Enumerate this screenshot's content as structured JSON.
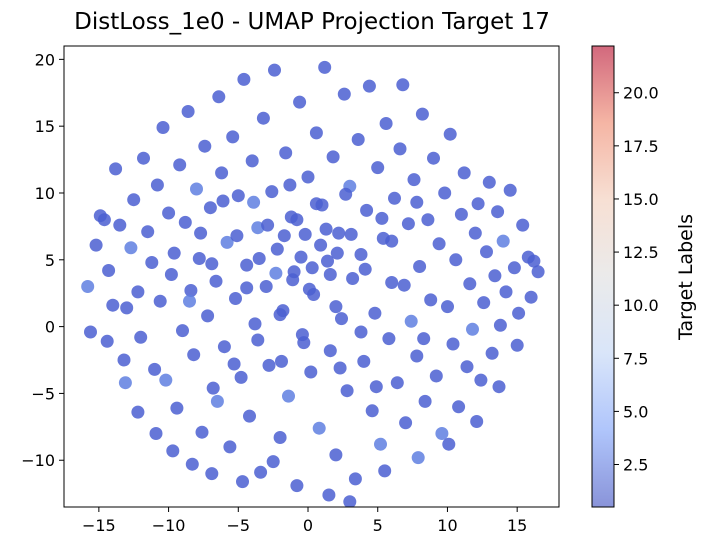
{
  "chart_data": {
    "type": "scatter",
    "title": "DistLoss_1e0 - UMAP Projection Target 17",
    "xlabel": "",
    "ylabel": "",
    "xlim": [
      -17.5,
      18
    ],
    "ylim": [
      -13.5,
      21
    ],
    "x_ticks": [
      -15,
      -10,
      -5,
      0,
      5,
      10,
      15
    ],
    "x_tick_labels": [
      "−15",
      "−10",
      "−5",
      "0",
      "5",
      "10",
      "15"
    ],
    "y_ticks": [
      -10,
      -5,
      0,
      5,
      10,
      15,
      20
    ],
    "y_tick_labels": [
      "−10",
      "−5",
      "0",
      "5",
      "10",
      "15",
      "20"
    ],
    "grid": false,
    "legend": "none",
    "point_color": "#4b5fd1",
    "point_color_alt": "#5f7fe0",
    "point_alpha": 0.85,
    "colorbar": {
      "label": "Target Labels",
      "range": [
        0.5,
        22.2
      ],
      "ticks": [
        2.5,
        5.0,
        7.5,
        10.0,
        12.5,
        15.0,
        17.5,
        20.0
      ],
      "tick_labels": [
        "2.5",
        "5.0",
        "7.5",
        "10.0",
        "12.5",
        "15.0",
        "17.5",
        "20.0"
      ],
      "colormap": "coolwarm",
      "colormap_stops": [
        "#3b4cc0",
        "#7b9ff9",
        "#c0d4f5",
        "#dddddd",
        "#f2cbb7",
        "#ee8468",
        "#b40426"
      ],
      "alpha": 0.6
    },
    "series": [
      {
        "values": "approximately 1500 points filling a roughly circular region centred near (0, 4) with radius about 16; all points have target values near 1–3 and render in the blue end of the colormap",
        "points": [
          [
            -15.8,
            3.0
          ],
          [
            -15.6,
            -0.4
          ],
          [
            -15.2,
            6.1
          ],
          [
            -14.9,
            8.3
          ],
          [
            -14.6,
            8.0
          ],
          [
            -14.3,
            4.2
          ],
          [
            -14.0,
            1.6
          ],
          [
            -13.8,
            11.8
          ],
          [
            -13.5,
            7.6
          ],
          [
            -13.2,
            -2.5
          ],
          [
            -13.0,
            1.4
          ],
          [
            -12.7,
            5.9
          ],
          [
            -12.5,
            9.5
          ],
          [
            -12.2,
            2.6
          ],
          [
            -12.0,
            -0.8
          ],
          [
            -11.8,
            12.6
          ],
          [
            -11.5,
            7.1
          ],
          [
            -11.2,
            4.8
          ],
          [
            -11.0,
            -3.2
          ],
          [
            -10.8,
            10.6
          ],
          [
            -10.6,
            1.9
          ],
          [
            -10.4,
            14.9
          ],
          [
            -10.2,
            -4.0
          ],
          [
            -10.0,
            8.5
          ],
          [
            -9.8,
            3.9
          ],
          [
            -9.6,
            5.5
          ],
          [
            -9.4,
            -6.1
          ],
          [
            -9.2,
            12.1
          ],
          [
            -9.0,
            -0.3
          ],
          [
            -8.8,
            7.8
          ],
          [
            -8.6,
            16.1
          ],
          [
            -8.4,
            2.7
          ],
          [
            -8.2,
            -2.1
          ],
          [
            -8.0,
            10.3
          ],
          [
            -7.8,
            5.1
          ],
          [
            -7.6,
            -7.9
          ],
          [
            -7.4,
            13.5
          ],
          [
            -7.2,
            0.8
          ],
          [
            -7.0,
            8.9
          ],
          [
            -6.8,
            -4.6
          ],
          [
            -6.6,
            3.4
          ],
          [
            -6.4,
            17.2
          ],
          [
            -6.2,
            11.5
          ],
          [
            -6.0,
            -1.5
          ],
          [
            -5.8,
            6.3
          ],
          [
            -5.6,
            -9.0
          ],
          [
            -5.4,
            14.2
          ],
          [
            -5.2,
            2.1
          ],
          [
            -5.0,
            9.8
          ],
          [
            -4.8,
            -3.8
          ],
          [
            -4.6,
            18.5
          ],
          [
            -4.4,
            4.6
          ],
          [
            -4.2,
            -6.7
          ],
          [
            -4.0,
            12.4
          ],
          [
            -3.8,
            0.2
          ],
          [
            -3.6,
            7.4
          ],
          [
            -3.4,
            -10.9
          ],
          [
            -3.2,
            15.6
          ],
          [
            -3.0,
            3.0
          ],
          [
            -2.8,
            -2.9
          ],
          [
            -2.6,
            10.1
          ],
          [
            -2.4,
            19.2
          ],
          [
            -2.2,
            5.8
          ],
          [
            -2.0,
            -8.3
          ],
          [
            -1.8,
            1.2
          ],
          [
            -1.6,
            13.0
          ],
          [
            -1.4,
            -5.2
          ],
          [
            -1.2,
            8.2
          ],
          [
            -1.0,
            4.1
          ],
          [
            -0.8,
            -11.9
          ],
          [
            -0.6,
            16.8
          ],
          [
            -0.4,
            -0.6
          ],
          [
            -0.2,
            6.9
          ],
          [
            0.0,
            11.2
          ],
          [
            0.2,
            -3.4
          ],
          [
            0.4,
            2.4
          ],
          [
            0.6,
            14.5
          ],
          [
            0.8,
            -7.6
          ],
          [
            1.0,
            9.1
          ],
          [
            1.2,
            19.4
          ],
          [
            1.4,
            4.9
          ],
          [
            1.6,
            -1.8
          ],
          [
            1.8,
            12.7
          ],
          [
            2.0,
            -9.6
          ],
          [
            2.2,
            7.0
          ],
          [
            2.4,
            0.6
          ],
          [
            2.6,
            17.4
          ],
          [
            2.8,
            -4.8
          ],
          [
            3.0,
            10.5
          ],
          [
            3.2,
            3.6
          ],
          [
            3.4,
            -11.4
          ],
          [
            3.6,
            14.0
          ],
          [
            3.8,
            5.4
          ],
          [
            4.0,
            -2.6
          ],
          [
            4.2,
            8.7
          ],
          [
            4.4,
            18.0
          ],
          [
            4.6,
            -6.3
          ],
          [
            4.8,
            1.0
          ],
          [
            5.0,
            11.9
          ],
          [
            5.2,
            -8.8
          ],
          [
            5.4,
            6.6
          ],
          [
            5.6,
            15.2
          ],
          [
            5.8,
            -0.9
          ],
          [
            6.0,
            3.3
          ],
          [
            6.2,
            9.6
          ],
          [
            6.4,
            -4.2
          ],
          [
            6.6,
            13.3
          ],
          [
            6.8,
            18.1
          ],
          [
            7.0,
            -7.2
          ],
          [
            7.2,
            7.7
          ],
          [
            7.4,
            0.4
          ],
          [
            7.6,
            11.0
          ],
          [
            7.8,
            -2.2
          ],
          [
            8.0,
            4.5
          ],
          [
            8.2,
            15.9
          ],
          [
            8.4,
            -5.6
          ],
          [
            8.6,
            8.0
          ],
          [
            8.8,
            2.0
          ],
          [
            9.0,
            12.6
          ],
          [
            9.2,
            -3.7
          ],
          [
            9.4,
            6.2
          ],
          [
            9.6,
            -8.0
          ],
          [
            9.8,
            10.0
          ],
          [
            10.0,
            1.5
          ],
          [
            10.2,
            14.4
          ],
          [
            10.4,
            -1.3
          ],
          [
            10.6,
            5.0
          ],
          [
            10.8,
            -6.0
          ],
          [
            11.0,
            8.4
          ],
          [
            11.2,
            11.5
          ],
          [
            11.4,
            -3.0
          ],
          [
            11.6,
            3.2
          ],
          [
            11.8,
            -0.2
          ],
          [
            12.0,
            7.0
          ],
          [
            12.2,
            9.2
          ],
          [
            12.4,
            -4.0
          ],
          [
            12.6,
            1.8
          ],
          [
            12.8,
            5.6
          ],
          [
            13.0,
            10.8
          ],
          [
            13.2,
            -2.0
          ],
          [
            13.4,
            3.8
          ],
          [
            13.6,
            8.6
          ],
          [
            13.8,
            0.1
          ],
          [
            14.0,
            6.4
          ],
          [
            14.2,
            2.6
          ],
          [
            14.5,
            10.2
          ],
          [
            14.8,
            4.4
          ],
          [
            15.1,
            1.0
          ],
          [
            15.4,
            7.6
          ],
          [
            15.8,
            5.2
          ],
          [
            16.0,
            2.2
          ],
          [
            16.2,
            4.9
          ],
          [
            16.5,
            4.1
          ],
          [
            -14.4,
            -1.1
          ],
          [
            -13.1,
            -4.2
          ],
          [
            -12.2,
            -6.4
          ],
          [
            -10.9,
            -8.0
          ],
          [
            -9.7,
            -9.3
          ],
          [
            -8.3,
            -10.3
          ],
          [
            -6.9,
            -11.0
          ],
          [
            -4.7,
            -11.6
          ],
          [
            -2.5,
            -10.1
          ],
          [
            1.5,
            -12.6
          ],
          [
            3.0,
            -13.1
          ],
          [
            5.5,
            -10.8
          ],
          [
            7.9,
            -9.8
          ],
          [
            10.1,
            -8.8
          ],
          [
            12.1,
            -7.1
          ],
          [
            13.7,
            -4.5
          ],
          [
            15.0,
            -1.4
          ],
          [
            -1.1,
            3.5
          ],
          [
            -0.5,
            5.2
          ],
          [
            0.3,
            4.4
          ],
          [
            0.9,
            6.1
          ],
          [
            1.6,
            3.9
          ],
          [
            -1.7,
            6.8
          ],
          [
            -2.3,
            4.0
          ],
          [
            0.1,
            2.8
          ],
          [
            1.3,
            7.3
          ],
          [
            -0.8,
            8.0
          ],
          [
            2.1,
            5.5
          ],
          [
            -2.9,
            7.6
          ],
          [
            3.1,
            6.9
          ],
          [
            -3.5,
            5.1
          ],
          [
            0.6,
            9.2
          ],
          [
            -1.3,
            10.6
          ],
          [
            2.7,
            9.9
          ],
          [
            -3.9,
            9.3
          ],
          [
            4.1,
            4.3
          ],
          [
            -4.4,
            2.9
          ],
          [
            -5.1,
            6.8
          ],
          [
            5.3,
            8.1
          ],
          [
            -6.1,
            9.4
          ],
          [
            6.0,
            6.4
          ],
          [
            -6.9,
            4.7
          ],
          [
            6.9,
            3.1
          ],
          [
            -7.7,
            7.0
          ],
          [
            7.8,
            9.3
          ],
          [
            -8.5,
            1.9
          ],
          [
            8.3,
            -0.9
          ],
          [
            -2.0,
            0.9
          ],
          [
            2.0,
            1.5
          ],
          [
            -0.3,
            -1.2
          ],
          [
            -1.9,
            -2.6
          ],
          [
            2.3,
            -3.1
          ],
          [
            -3.6,
            -1.0
          ],
          [
            3.8,
            -0.4
          ],
          [
            -5.3,
            -2.8
          ],
          [
            4.9,
            -4.5
          ],
          [
            -6.5,
            -5.6
          ]
        ]
      }
    ]
  }
}
